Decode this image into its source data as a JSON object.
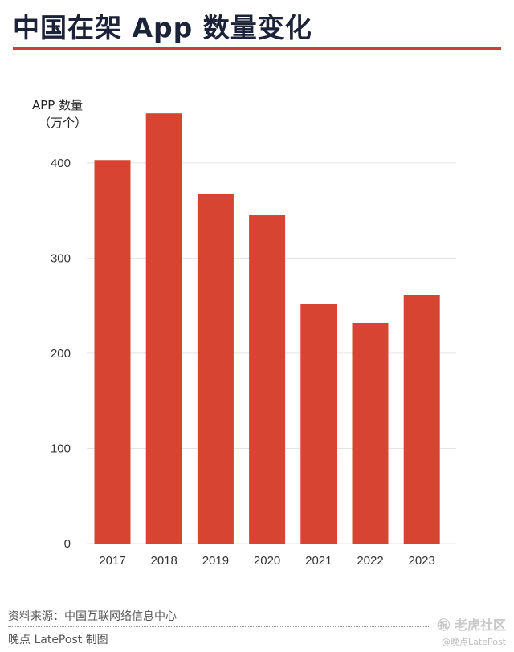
{
  "title": "中国在架 App 数量变化",
  "ylabel_line1": "APP 数量",
  "ylabel_line2": "（万个）",
  "source": "资料来源：中国互联网络信息中心",
  "credit": "晚点 LatePost 制图",
  "watermark_social": "㊗ 老虎社区",
  "watermark_social_small": "@晚点LatePost",
  "colors": {
    "bar": "#d84432",
    "title": "#1c2237",
    "rule": "#cf4033",
    "grid": "#e4e4e4"
  },
  "chart_data": {
    "type": "bar",
    "title": "中国在架 App 数量变化",
    "ylabel": "APP 数量（万个）",
    "xlabel": "",
    "categories": [
      "2017",
      "2018",
      "2019",
      "2020",
      "2021",
      "2022",
      "2023"
    ],
    "values": [
      403,
      452,
      367,
      345,
      252,
      232,
      261
    ],
    "ylim": [
      0,
      460
    ],
    "yticks": [
      0,
      100,
      200,
      300,
      400
    ],
    "grid": true,
    "legend": "none"
  }
}
